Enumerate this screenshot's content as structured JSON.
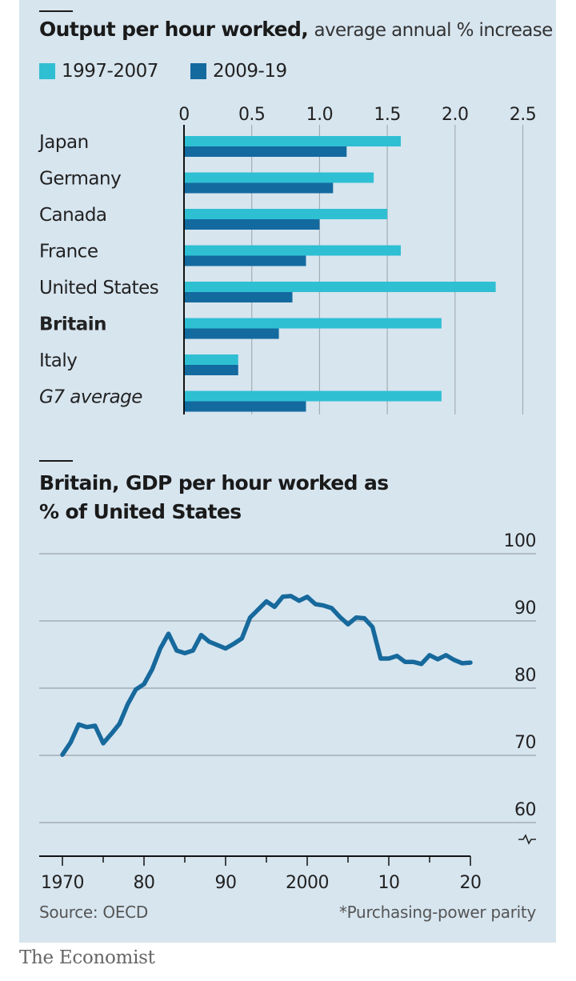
{
  "colors": {
    "background": "#d7e5ef",
    "series_light": "#2fbfd3",
    "series_dark": "#136a9f",
    "line": "#17699c",
    "gridline": "#a3adb5"
  },
  "brand": "The Economist",
  "footer": {
    "source": "Source: OECD",
    "note": "*Purchasing-power parity"
  },
  "chart_data": [
    {
      "type": "bar",
      "orientation": "horizontal",
      "title": "Output per hour worked,",
      "subtitle": "average annual % increase",
      "xlabel": "",
      "ylabel": "",
      "xlim": [
        0,
        2.5
      ],
      "xticks": [
        "0",
        "0.5",
        "1.0",
        "1.5",
        "2.0",
        "2.5"
      ],
      "xtick_values": [
        0,
        0.5,
        1.0,
        1.5,
        2.0,
        2.5
      ],
      "grid": true,
      "legend_position": "top-left",
      "categories": [
        "Japan",
        "Germany",
        "Canada",
        "France",
        "United States",
        "Britain",
        "Italy",
        "G7 average"
      ],
      "category_styles": [
        "normal",
        "normal",
        "normal",
        "normal",
        "normal",
        "bold",
        "normal",
        "italic"
      ],
      "series": [
        {
          "name": "1997-2007",
          "values": [
            1.6,
            1.4,
            1.5,
            1.6,
            2.3,
            1.9,
            0.4,
            1.9
          ]
        },
        {
          "name": "2009-19",
          "values": [
            1.2,
            1.1,
            1.0,
            0.9,
            0.8,
            0.7,
            0.4,
            0.9
          ]
        }
      ]
    },
    {
      "type": "line",
      "title": "Britain, GDP per hour worked as % of United States",
      "xlabel": "",
      "ylabel": "",
      "xlim": [
        1970,
        2020
      ],
      "ylim": [
        60,
        100
      ],
      "y_axis_break": true,
      "yticks": [
        "100",
        "90",
        "80",
        "70",
        "60"
      ],
      "ytick_values": [
        100,
        90,
        80,
        70,
        60
      ],
      "xticks": [
        "1970",
        "80",
        "90",
        "2000",
        "10",
        "20"
      ],
      "xtick_values": [
        1970,
        1980,
        1990,
        2000,
        2010,
        2020
      ],
      "minor_xtick_values": [
        1975,
        1985,
        1995,
        2005,
        2015
      ],
      "grid": true,
      "series": [
        {
          "name": "Britain",
          "x": [
            1970,
            1971,
            1972,
            1973,
            1974,
            1975,
            1976,
            1977,
            1978,
            1979,
            1980,
            1981,
            1982,
            1983,
            1984,
            1985,
            1986,
            1987,
            1988,
            1989,
            1990,
            1991,
            1992,
            1993,
            1994,
            1995,
            1996,
            1997,
            1998,
            1999,
            2000,
            2001,
            2002,
            2003,
            2004,
            2005,
            2006,
            2007,
            2008,
            2009,
            2010,
            2011,
            2012,
            2013,
            2014,
            2015,
            2016,
            2017,
            2018,
            2019,
            2020
          ],
          "values": [
            70.1,
            71.9,
            74.6,
            74.2,
            74.4,
            71.8,
            73.2,
            74.7,
            77.6,
            79.8,
            80.6,
            82.8,
            85.9,
            88.1,
            85.6,
            85.2,
            85.6,
            87.9,
            86.9,
            86.4,
            85.9,
            86.6,
            87.4,
            90.5,
            91.7,
            92.9,
            92.1,
            93.6,
            93.7,
            93.0,
            93.6,
            92.5,
            92.3,
            91.9,
            90.6,
            89.5,
            90.5,
            90.4,
            89.1,
            84.4,
            84.4,
            84.8,
            83.9,
            83.9,
            83.6,
            84.9,
            84.3,
            84.9,
            84.2,
            83.7,
            83.8
          ]
        }
      ]
    }
  ]
}
